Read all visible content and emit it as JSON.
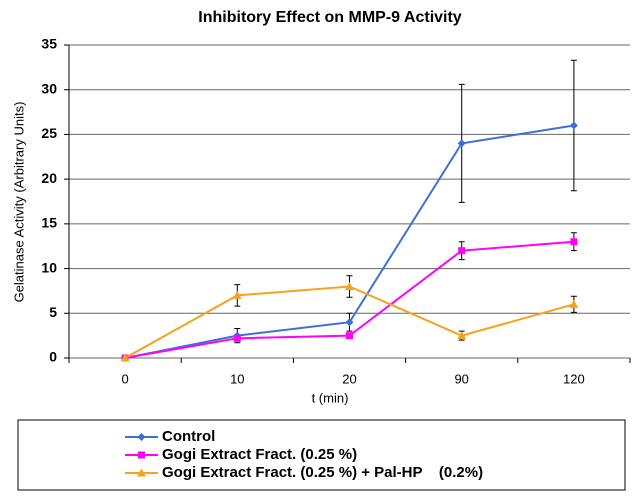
{
  "chart_data": {
    "type": "line",
    "title": "Inhibitory Effect on MMP-9 Activity",
    "x_label": "t (min)",
    "y_label": "Gelatinase Activity (Arbitrary Units)",
    "categories": [
      "0",
      "10",
      "20",
      "90",
      "120"
    ],
    "series": [
      {
        "name": "Control",
        "color": "#3e6fd9",
        "marker": "diamond",
        "values": [
          0,
          2.5,
          4,
          24,
          26
        ],
        "errors": [
          0,
          0.8,
          1,
          6.6,
          7.3
        ]
      },
      {
        "name": "Gogi Extract Fract. (0.25 %)",
        "color": "#ff00ff",
        "marker": "square",
        "values": [
          0,
          2.2,
          2.5,
          12,
          13
        ],
        "errors": [
          0,
          0.3,
          0.3,
          1,
          1
        ]
      },
      {
        "name": "Gogi Extract Fract. (0.25 %) + Pal-HP    (0.2%)",
        "color": "#f7a21c",
        "marker": "triangle",
        "values": [
          0,
          7,
          8,
          2.5,
          6
        ],
        "errors": [
          0,
          1.2,
          1.2,
          0.5,
          0.9
        ]
      }
    ],
    "ylim": [
      0,
      35
    ],
    "yticks": [
      0,
      5,
      10,
      15,
      20,
      25,
      30,
      35
    ],
    "grid": true,
    "legend": "bottom"
  }
}
